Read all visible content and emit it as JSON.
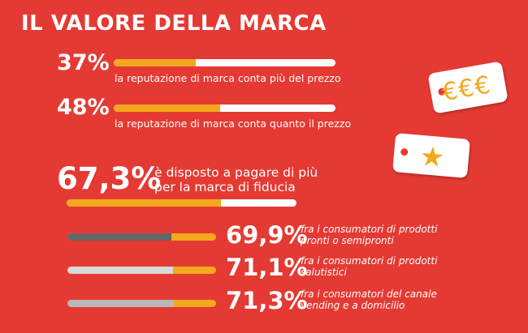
{
  "title": "IL VALORE DELLA MARCA",
  "stats": [
    {
      "value": "37%",
      "text": "la reputazione di marca conta più del prezzo",
      "fraction": 0.37
    },
    {
      "value": "48%",
      "text": "la reputazione di marca conta quanto il prezzo",
      "fraction": 0.48
    },
    {
      "value": "67,3%",
      "line1": "è disposto a pagare di più",
      "line2": "per la marca di fiducia",
      "fraction": 0.673
    },
    {
      "value": "69,9%",
      "line1": "fra i consumatori di prodotti",
      "line2": "pronti o semipronti",
      "fraction": 0.699
    },
    {
      "value": "71,1%",
      "line1": "fra i consumatori di prodotti",
      "line2": "salutistici",
      "fraction": 0.711
    },
    {
      "value": "71,3%",
      "line1": "fra i consumatori del canale",
      "line2": "vending e a domicilio",
      "fraction": 0.713
    }
  ],
  "icons": {
    "price_tag_symbol": "€€€",
    "star_tag_symbol": "★"
  },
  "colors": {
    "background": "#e53a33",
    "accent": "#f4a81d",
    "track": "#ffffff",
    "dark_grey": "#666666",
    "light_grey": "#d9d9d9",
    "mid_grey": "#b8b8b8"
  }
}
